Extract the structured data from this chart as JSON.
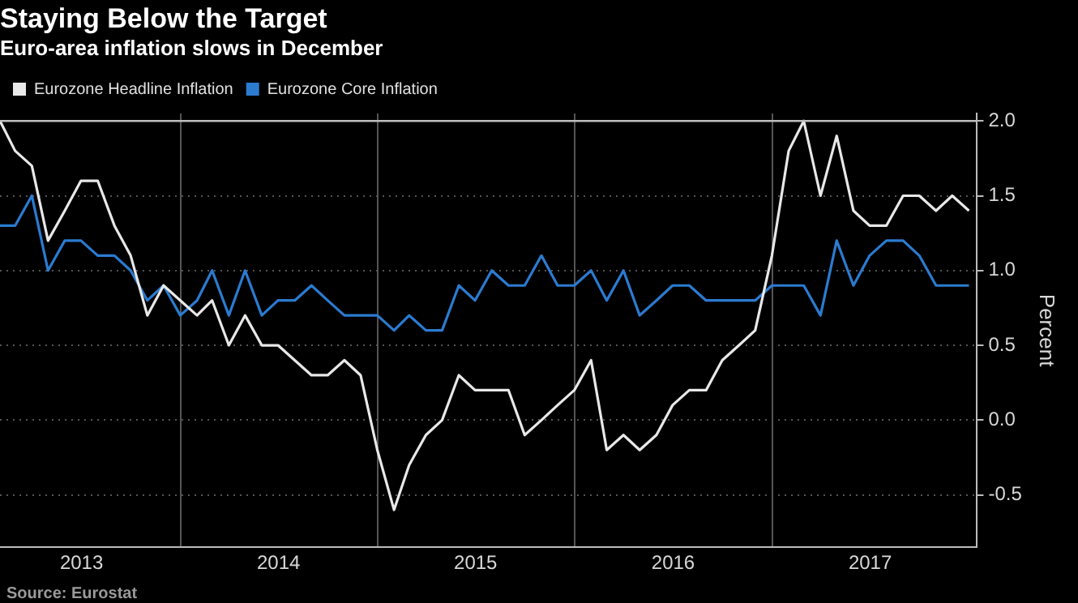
{
  "chart_data": {
    "type": "line",
    "title": "Staying Below the Target",
    "subtitle": "Euro-area inflation slows in December",
    "ylabel": "Percent",
    "x": [
      "2013-01-31",
      "2013-02-28",
      "2013-03-31",
      "2013-04-30",
      "2013-05-31",
      "2013-06-30",
      "2013-07-31",
      "2013-08-31",
      "2013-09-30",
      "2013-10-31",
      "2013-11-30",
      "2013-12-31",
      "2014-01-31",
      "2014-02-28",
      "2014-03-31",
      "2014-04-30",
      "2014-05-31",
      "2014-06-30",
      "2014-07-31",
      "2014-08-31",
      "2014-09-30",
      "2014-10-31",
      "2014-11-30",
      "2014-12-31",
      "2015-01-31",
      "2015-02-28",
      "2015-03-31",
      "2015-04-30",
      "2015-05-31",
      "2015-06-30",
      "2015-07-31",
      "2015-08-31",
      "2015-09-30",
      "2015-10-31",
      "2015-11-30",
      "2015-12-31",
      "2016-01-31",
      "2016-02-29",
      "2016-03-31",
      "2016-04-30",
      "2016-05-31",
      "2016-06-30",
      "2016-07-31",
      "2016-08-31",
      "2016-09-30",
      "2016-10-31",
      "2016-11-30",
      "2016-12-31",
      "2017-01-31",
      "2017-02-28",
      "2017-03-31",
      "2017-04-30",
      "2017-05-31",
      "2017-06-30",
      "2017-07-31",
      "2017-08-31",
      "2017-09-30",
      "2017-10-31",
      "2017-11-30",
      "2017-12-31"
    ],
    "series": [
      {
        "name": "Eurozone Headline Inflation",
        "color": "#e8e8e8",
        "values": [
          2.0,
          1.8,
          1.7,
          1.2,
          1.4,
          1.6,
          1.6,
          1.3,
          1.1,
          0.7,
          0.9,
          0.8,
          0.7,
          0.8,
          0.5,
          0.7,
          0.5,
          0.5,
          0.4,
          0.3,
          0.3,
          0.4,
          0.3,
          -0.2,
          -0.6,
          -0.3,
          -0.1,
          0.0,
          0.3,
          0.2,
          0.2,
          0.2,
          -0.1,
          0.0,
          0.1,
          0.2,
          0.4,
          -0.2,
          -0.1,
          -0.2,
          -0.1,
          0.1,
          0.2,
          0.2,
          0.4,
          0.5,
          0.6,
          1.1,
          1.8,
          2.0,
          1.5,
          1.9,
          1.4,
          1.3,
          1.3,
          1.5,
          1.5,
          1.4,
          1.5,
          1.4
        ]
      },
      {
        "name": "Eurozone Core Inflation",
        "color": "#2b7bd0",
        "values": [
          1.3,
          1.3,
          1.5,
          1.0,
          1.2,
          1.2,
          1.1,
          1.1,
          1.0,
          0.8,
          0.9,
          0.7,
          0.8,
          1.0,
          0.7,
          1.0,
          0.7,
          0.8,
          0.8,
          0.9,
          0.8,
          0.7,
          0.7,
          0.7,
          0.6,
          0.7,
          0.6,
          0.6,
          0.9,
          0.8,
          1.0,
          0.9,
          0.9,
          1.1,
          0.9,
          0.9,
          1.0,
          0.8,
          1.0,
          0.7,
          0.8,
          0.9,
          0.9,
          0.8,
          0.8,
          0.8,
          0.8,
          0.9,
          0.9,
          0.9,
          0.7,
          1.2,
          0.9,
          1.1,
          1.2,
          1.2,
          1.1,
          0.9,
          0.9,
          0.9
        ]
      }
    ],
    "xlim": [
      "2013-01-31",
      "2018-01-15"
    ],
    "xticks": [
      {
        "value": "2013-07-01",
        "label": "2013"
      },
      {
        "value": "2014-01-01",
        "label": null
      },
      {
        "value": "2014-07-01",
        "label": "2014"
      },
      {
        "value": "2015-01-01",
        "label": null
      },
      {
        "value": "2015-07-01",
        "label": "2015"
      },
      {
        "value": "2016-01-01",
        "label": null
      },
      {
        "value": "2016-07-01",
        "label": "2016"
      },
      {
        "value": "2017-01-01",
        "label": null
      },
      {
        "value": "2017-07-01",
        "label": "2017"
      }
    ],
    "ylim": [
      -0.85,
      2.05
    ],
    "yticks": [
      {
        "value": 2,
        "label": "2.0"
      },
      1.5,
      {
        "value": 1,
        "label": "1.0"
      },
      0.5,
      {
        "value": 0,
        "label": "0.0"
      },
      -0.5
    ],
    "ref_lines": [
      {
        "axis": "y",
        "value": 2.0,
        "color": "#bdbdbd"
      }
    ],
    "grid": true,
    "legend": "top left",
    "marker": "none",
    "line_style": "solid",
    "annotations": [
      "Source: Eurostat"
    ]
  }
}
